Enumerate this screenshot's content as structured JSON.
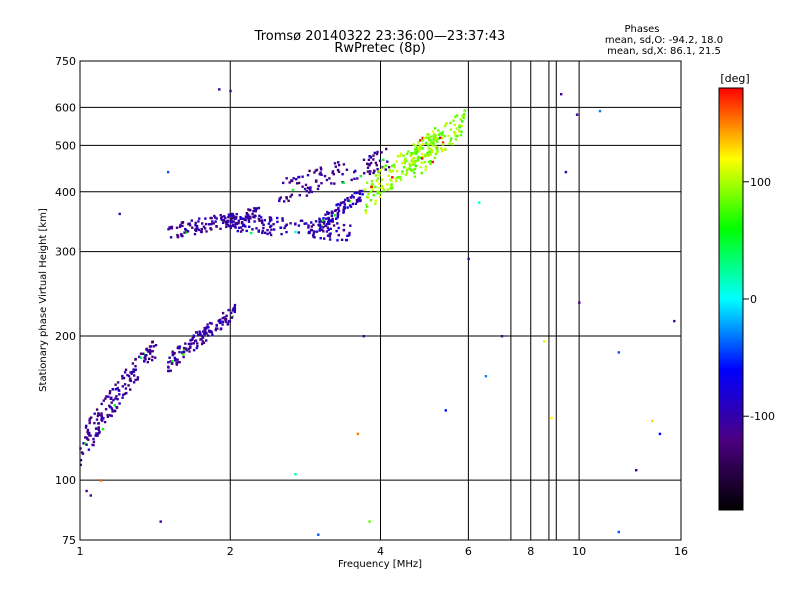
{
  "chart_data": {
    "type": "scatter",
    "title": "Tromsø 20140322 23:36:00—23:37:43",
    "subtitle": "RwPretec (8p)",
    "xlabel": "Frequency [MHz]",
    "ylabel": "Stationary phase Virtual Height [km]",
    "x_scale": "log",
    "y_scale": "log",
    "xlim": [
      1,
      16
    ],
    "ylim": [
      75,
      750
    ],
    "x_ticks": [
      1,
      2,
      4,
      6,
      8,
      10,
      16
    ],
    "x_tick_labels": [
      "1",
      "2",
      "4",
      "6",
      "8",
      "10",
      "16"
    ],
    "x_gridlines": [
      2,
      4,
      6,
      7.3,
      8,
      8.7,
      9,
      10
    ],
    "y_ticks": [
      75,
      100,
      200,
      300,
      400,
      500,
      600,
      750
    ],
    "y_tick_labels": [
      "75",
      "100",
      "200",
      "300",
      "400",
      "500",
      "600",
      "750"
    ],
    "y_gridlines": [
      100,
      200,
      300,
      400,
      500,
      600
    ],
    "grid": true,
    "legend_title": "Phases",
    "legend_lines": [
      "mean, sd,O: -94.2, 18.0",
      "mean, sd,X:  86.1, 21.5"
    ],
    "colorbar": {
      "unit_label": "[deg]",
      "range": [
        -180,
        180
      ],
      "tick_values": [
        100,
        0,
        -100
      ],
      "tick_labels": [
        "100",
        "0",
        "-100"
      ],
      "colors": [
        "#000000",
        "#4b0082",
        "#0000ff",
        "#00ffff",
        "#00ff00",
        "#ffff00",
        "#ff0000"
      ]
    },
    "traces": [
      {
        "name": "",
        "freq_range": [
          1.0,
          1.42
        ],
        "height_range": [
          115,
          190
        ],
        "phase": -110,
        "n": 170,
        "spread": 10
      },
      {
        "name": "",
        "freq_range": [
          1.5,
          2.05
        ],
        "height_range": [
          175,
          225
        ],
        "phase": -105,
        "n": 140,
        "spread": 8
      },
      {
        "name": "",
        "freq_range": [
          1.5,
          2.3
        ],
        "height_range": [
          330,
          360
        ],
        "phase": -110,
        "n": 140,
        "spread": 12
      },
      {
        "name": "",
        "freq_range": [
          2.0,
          3.5
        ],
        "height_range": [
          345,
          330
        ],
        "phase": -100,
        "n": 140,
        "spread": 15
      },
      {
        "name": "",
        "freq_range": [
          3.0,
          3.7
        ],
        "height_range": [
          340,
          400
        ],
        "phase": -95,
        "n": 90,
        "spread": 12
      },
      {
        "name": "",
        "freq_range": [
          2.5,
          4.2
        ],
        "height_range": [
          400,
          470
        ],
        "phase": -110,
        "n": 110,
        "spread": 25
      },
      {
        "name": "",
        "freq_range": [
          3.7,
          5.2
        ],
        "height_range": [
          385,
          520
        ],
        "phase": 95,
        "n": 160,
        "spread": 30
      },
      {
        "name": "",
        "freq_range": [
          4.6,
          5.9
        ],
        "height_range": [
          450,
          560
        ],
        "phase": 90,
        "n": 110,
        "spread": 35
      }
    ],
    "scatter_points": [
      {
        "x": 1.9,
        "y": 655,
        "c": -105
      },
      {
        "x": 2.0,
        "y": 650,
        "c": -110
      },
      {
        "x": 1.03,
        "y": 95,
        "c": -110
      },
      {
        "x": 1.05,
        "y": 93,
        "c": -115
      },
      {
        "x": 1.1,
        "y": 100,
        "c": 160
      },
      {
        "x": 1.45,
        "y": 82,
        "c": -110
      },
      {
        "x": 2.7,
        "y": 103,
        "c": 20
      },
      {
        "x": 3.0,
        "y": 77,
        "c": -40
      },
      {
        "x": 3.6,
        "y": 125,
        "c": 150
      },
      {
        "x": 3.8,
        "y": 82,
        "c": 80
      },
      {
        "x": 6.0,
        "y": 290,
        "c": -100
      },
      {
        "x": 6.3,
        "y": 380,
        "c": 10
      },
      {
        "x": 7.0,
        "y": 200,
        "c": -110
      },
      {
        "x": 8.5,
        "y": 195,
        "c": 110
      },
      {
        "x": 9.2,
        "y": 640,
        "c": -110
      },
      {
        "x": 9.4,
        "y": 440,
        "c": -100
      },
      {
        "x": 9.9,
        "y": 580,
        "c": -110
      },
      {
        "x": 10.0,
        "y": 235,
        "c": -110
      },
      {
        "x": 11.0,
        "y": 590,
        "c": -30
      },
      {
        "x": 12.0,
        "y": 185,
        "c": -40
      },
      {
        "x": 13.0,
        "y": 105,
        "c": -110
      },
      {
        "x": 14.5,
        "y": 125,
        "c": -60
      },
      {
        "x": 15.5,
        "y": 215,
        "c": -110
      },
      {
        "x": 12.0,
        "y": 78,
        "c": -40
      },
      {
        "x": 5.4,
        "y": 140,
        "c": -60
      },
      {
        "x": 8.8,
        "y": 135,
        "c": 120
      },
      {
        "x": 14.0,
        "y": 133,
        "c": 130
      },
      {
        "x": 1.2,
        "y": 360,
        "c": -100
      },
      {
        "x": 1.5,
        "y": 440,
        "c": -40
      },
      {
        "x": 2.7,
        "y": 330,
        "c": 10
      },
      {
        "x": 3.7,
        "y": 200,
        "c": -110
      },
      {
        "x": 6.5,
        "y": 165,
        "c": -30
      }
    ]
  }
}
